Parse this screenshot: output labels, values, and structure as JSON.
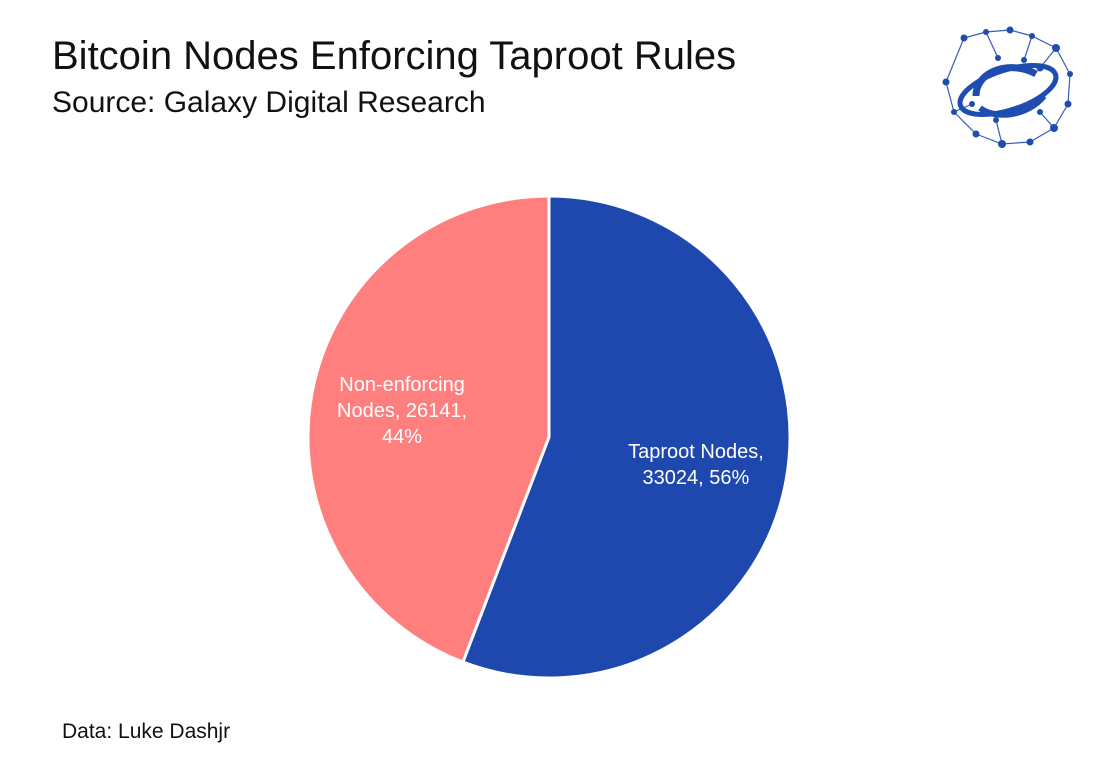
{
  "header": {
    "title": "Bitcoin Nodes Enforcing Taproot Rules",
    "subtitle": "Source: Galaxy Digital Research"
  },
  "footer": {
    "note": "Data: Luke Dashjr"
  },
  "logo": {
    "icon": "galaxy-network-globe-icon",
    "color": "#1F4CB0"
  },
  "chart_data": {
    "type": "pie",
    "title": "Bitcoin Nodes Enforcing Taproot Rules",
    "subtitle": "Source: Galaxy Digital Research",
    "slices": [
      {
        "label": "Taproot Nodes",
        "value": 33024,
        "percent": 56,
        "color": "#1F48AE",
        "label_lines": [
          "Taproot Nodes,",
          "33024, 56%"
        ]
      },
      {
        "label": "Non-enforcing Nodes",
        "value": 26141,
        "percent": 44,
        "color": "#FF7F7F",
        "label_lines": [
          "Non-enforcing",
          "Nodes, 26141,",
          "44%"
        ]
      }
    ],
    "legend": "none",
    "start_angle": "12 o'clock",
    "direction": "clockwise"
  }
}
